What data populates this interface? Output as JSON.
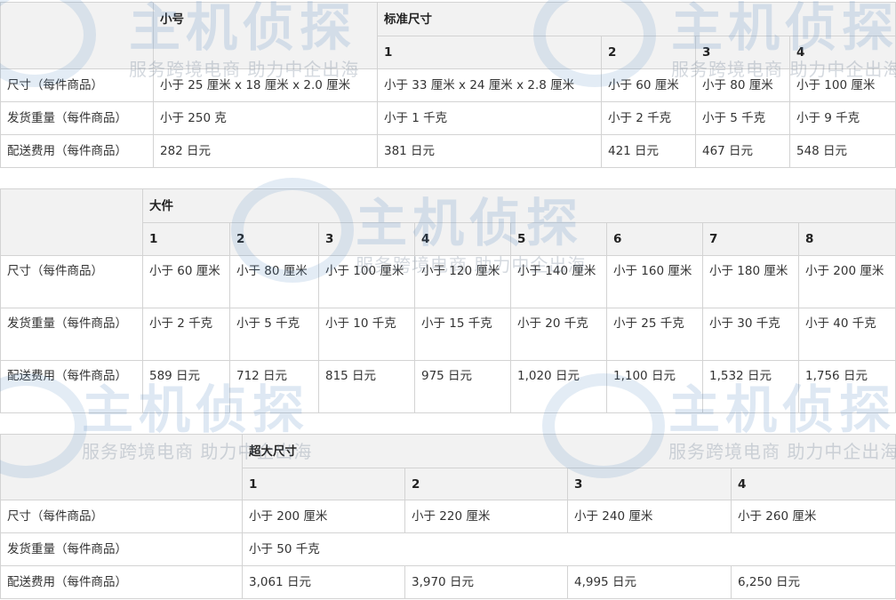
{
  "watermark": {
    "logo": "主机侦探",
    "slogan": "服务跨境电商 助力中企出海"
  },
  "row_labels": {
    "size": "尺寸（每件商品）",
    "weight": "发货重量（每件商品）",
    "fee": "配送费用（每件商品）",
    "weight_wrap": "发货重量（每件商品）",
    "fee_wrap": "配送费用（每件商品）"
  },
  "table1": {
    "small_header": "小号",
    "standard_header": "标准尺寸",
    "tiers": [
      "1",
      "2",
      "3",
      "4"
    ],
    "size": [
      "小于 25 厘米 x 18 厘米 x 2.0 厘米",
      "小于 33 厘米 x 24 厘米 x 2.8 厘米",
      "小于 60 厘米",
      "小于 80 厘米",
      "小于 100 厘米"
    ],
    "weight": [
      "小于 250 克",
      "小于 1 千克",
      "小于 2 千克",
      "小于 5 千克",
      "小于 9 千克"
    ],
    "fee": [
      "282 日元",
      "381 日元",
      "421 日元",
      "467 日元",
      "548 日元"
    ]
  },
  "table2": {
    "header": "大件",
    "tiers": [
      "1",
      "2",
      "3",
      "4",
      "5",
      "6",
      "7",
      "8"
    ],
    "size": [
      "小于 60 厘米",
      "小于 80 厘米",
      "小于 100 厘米",
      "小于 120 厘米",
      "小于 140 厘米",
      "小于 160 厘米",
      "小于 180 厘米",
      "小于 200 厘米"
    ],
    "weight": [
      "小于 2 千克",
      "小于 5 千克",
      "小于 10 千克",
      "小于 15 千克",
      "小于 20 千克",
      "小于 25 千克",
      "小于 30 千克",
      "小于 40 千克"
    ],
    "fee": [
      "589 日元",
      "712 日元",
      "815 日元",
      "975 日元",
      "1,020 日元",
      "1,100 日元",
      "1,532 日元",
      "1,756 日元"
    ]
  },
  "table3": {
    "header": "超大尺寸",
    "tiers": [
      "1",
      "2",
      "3",
      "4"
    ],
    "size": [
      "小于 200 厘米",
      "小于 220 厘米",
      "小于 240 厘米",
      "小于 260 厘米"
    ],
    "weight": "小于 50 千克",
    "fee": [
      "3,061 日元",
      "3,970 日元",
      "4,995 日元",
      "6,250 日元"
    ]
  }
}
